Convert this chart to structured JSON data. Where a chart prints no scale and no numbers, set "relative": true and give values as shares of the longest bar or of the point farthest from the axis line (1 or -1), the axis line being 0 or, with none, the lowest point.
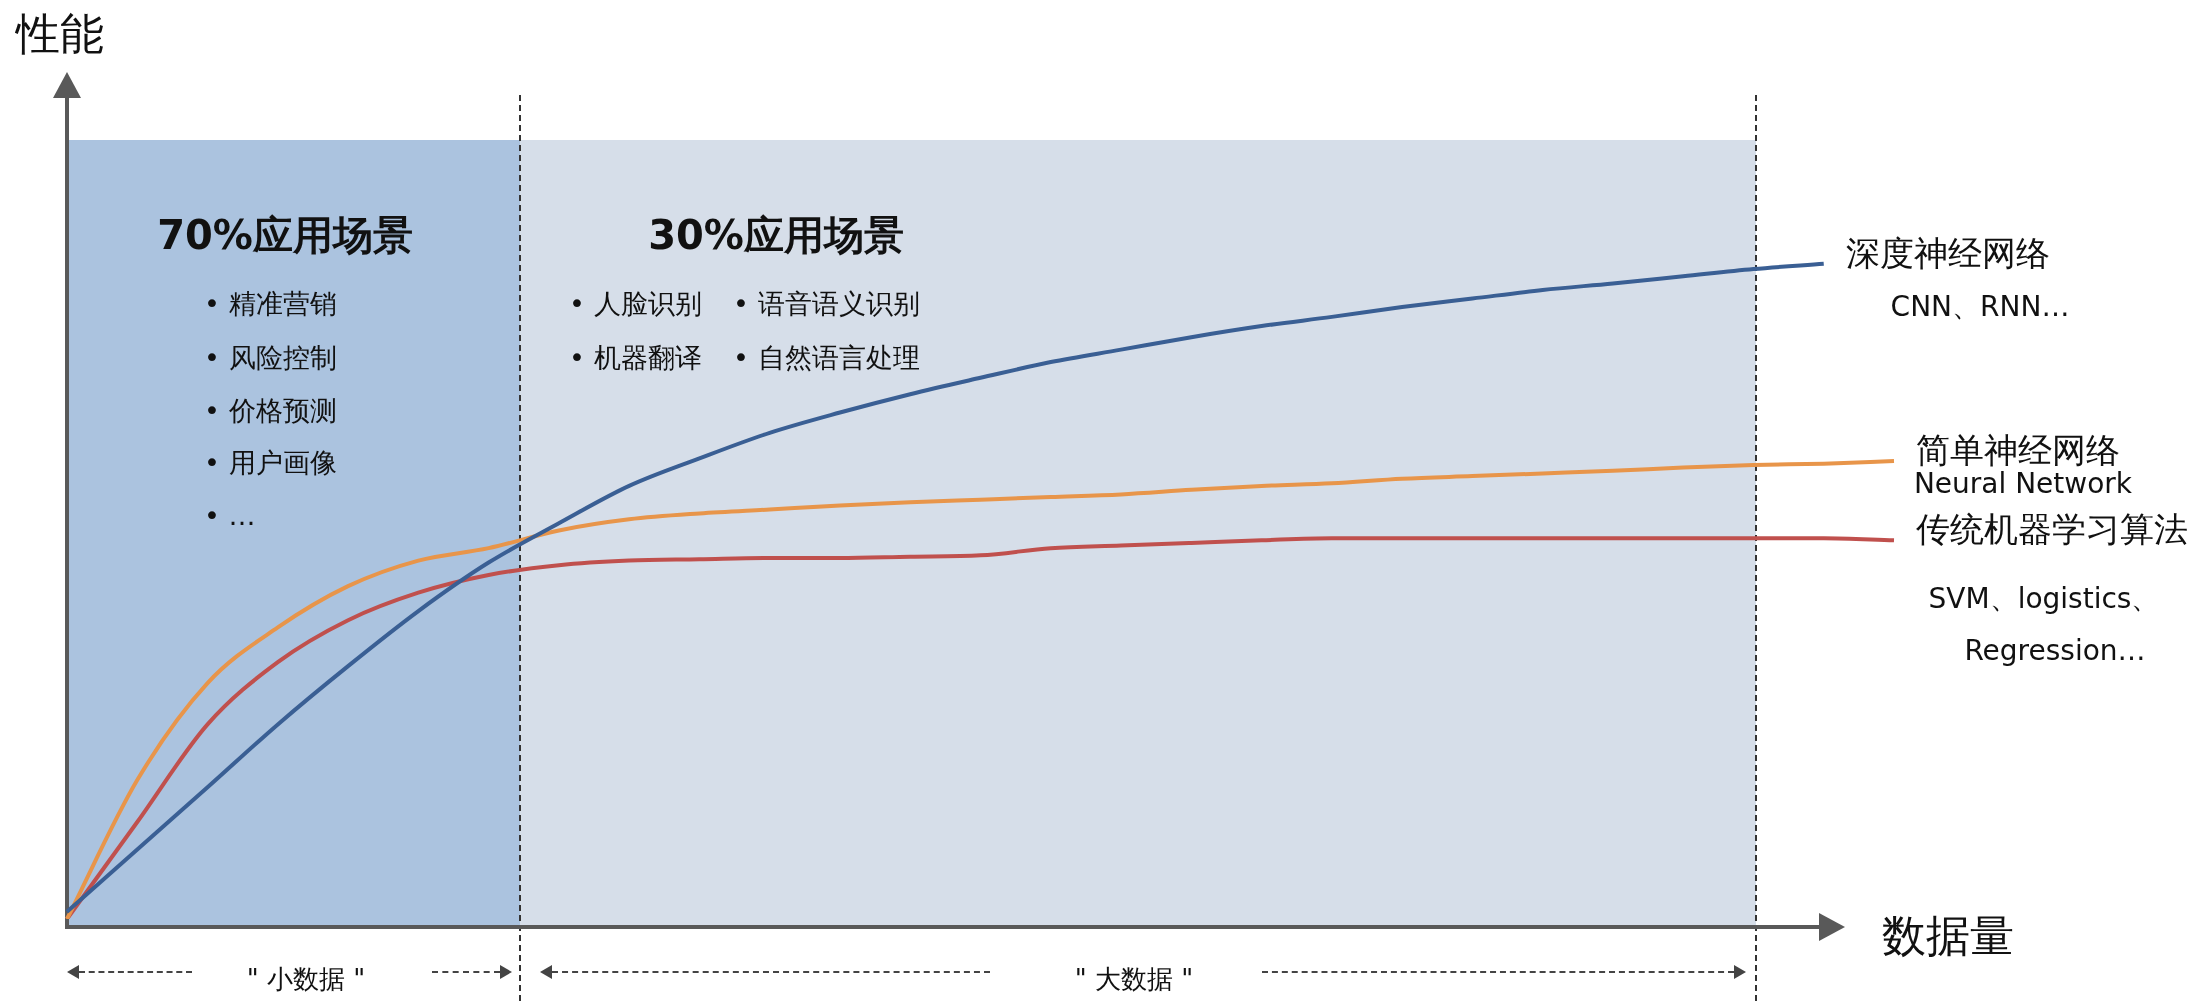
{
  "chart_data": {
    "type": "line",
    "relative": true,
    "xlabel": "数据量",
    "ylabel": "性能",
    "categories": [
      null,
      null,
      null,
      null,
      null,
      null,
      null,
      null,
      null,
      null,
      null,
      null,
      null,
      null,
      null,
      null,
      null,
      null,
      null,
      null,
      null,
      null,
      null,
      null,
      null,
      null,
      null
    ],
    "series": [
      {
        "name": "深度神经网络",
        "color": "#3a5f94",
        "values": [
          0.011,
          0.106,
          0.201,
          0.297,
          0.386,
          0.47,
          0.544,
          0.604,
          0.661,
          0.703,
          0.742,
          0.773,
          0.801,
          0.826,
          0.85,
          0.869,
          0.888,
          0.905,
          0.919,
          0.934,
          0.947,
          0.96,
          0.97,
          0.981,
          0.992,
          1,
          null
        ]
      },
      {
        "name": "简单神经网络",
        "color": "#e8954a",
        "values": [
          0,
          0.212,
          0.36,
          0.445,
          0.508,
          0.547,
          0.566,
          0.593,
          0.61,
          0.619,
          0.625,
          0.631,
          0.636,
          0.64,
          0.644,
          0.648,
          0.655,
          0.661,
          0.665,
          0.672,
          0.676,
          0.68,
          0.684,
          0.689,
          0.693,
          0.695,
          0.699
        ]
      },
      {
        "name": "传统机器学习算法",
        "color": "#c0504d",
        "values": [
          0,
          0.148,
          0.297,
          0.392,
          0.456,
          0.498,
          0.525,
          0.54,
          0.547,
          0.549,
          0.551,
          0.551,
          0.553,
          0.555,
          0.566,
          0.57,
          0.574,
          0.578,
          0.581,
          0.581,
          0.581,
          0.581,
          0.581,
          0.581,
          0.581,
          0.581,
          0.578
        ]
      }
    ],
    "annotations": [
      "70%应用场景",
      "• 精准营销",
      "• 风险控制",
      "• 价格预测",
      "• 用户画像",
      "• …",
      "30%应用场景",
      "• 人脸识别",
      "• 语音语义识别",
      "• 机器翻译",
      "• 自然语言处理",
      "CNN、RNN…",
      "Neural Network",
      "SVM、logistics、",
      "Regression…",
      "\" 小数据 \"",
      "\" 大数据 \""
    ]
  }
}
